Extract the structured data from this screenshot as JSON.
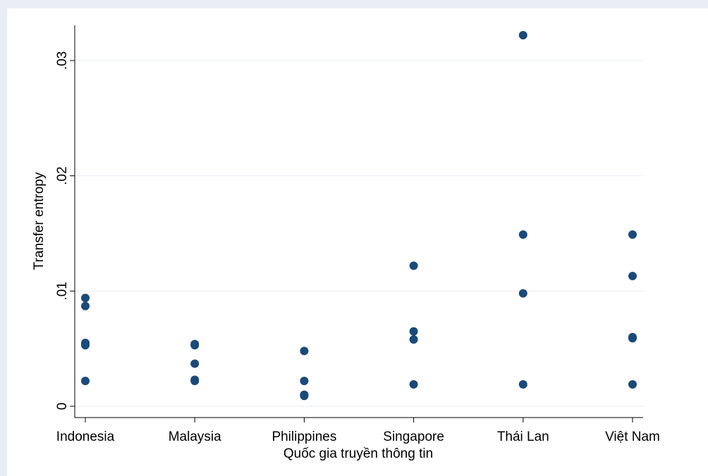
{
  "chart_data": {
    "type": "scatter",
    "xlabel": "Quốc gia truyền thông tin",
    "ylabel": "Transfer entropy",
    "categories": [
      "Indonesia",
      "Malaysia",
      "Philippines",
      "Singapore",
      "Thái Lan",
      "Việt Nam"
    ],
    "y_ticks": [
      {
        "value": 0,
        "label": "0"
      },
      {
        "value": 0.01,
        "label": ".01"
      },
      {
        "value": 0.02,
        "label": ".02"
      },
      {
        "value": 0.03,
        "label": ".03"
      }
    ],
    "ylim": [
      -0.001,
      0.0329
    ],
    "grid": true,
    "legend": "none",
    "marker_color": "#1a4a7a",
    "points": [
      {
        "category": "Indonesia",
        "y": 0.0094
      },
      {
        "category": "Indonesia",
        "y": 0.0087
      },
      {
        "category": "Indonesia",
        "y": 0.0055
      },
      {
        "category": "Indonesia",
        "y": 0.0053
      },
      {
        "category": "Indonesia",
        "y": 0.0022
      },
      {
        "category": "Malaysia",
        "y": 0.0054
      },
      {
        "category": "Malaysia",
        "y": 0.0053
      },
      {
        "category": "Malaysia",
        "y": 0.0037
      },
      {
        "category": "Malaysia",
        "y": 0.0023
      },
      {
        "category": "Malaysia",
        "y": 0.0022
      },
      {
        "category": "Philippines",
        "y": 0.0048
      },
      {
        "category": "Philippines",
        "y": 0.0022
      },
      {
        "category": "Philippines",
        "y": 0.001
      },
      {
        "category": "Philippines",
        "y": 0.0009
      },
      {
        "category": "Singapore",
        "y": 0.0122
      },
      {
        "category": "Singapore",
        "y": 0.0065
      },
      {
        "category": "Singapore",
        "y": 0.0058
      },
      {
        "category": "Singapore",
        "y": 0.0019
      },
      {
        "category": "Thái Lan",
        "y": 0.0322
      },
      {
        "category": "Thái Lan",
        "y": 0.0149
      },
      {
        "category": "Thái Lan",
        "y": 0.0098
      },
      {
        "category": "Thái Lan",
        "y": 0.0019
      },
      {
        "category": "Việt Nam",
        "y": 0.0149
      },
      {
        "category": "Việt Nam",
        "y": 0.0113
      },
      {
        "category": "Việt Nam",
        "y": 0.006
      },
      {
        "category": "Việt Nam",
        "y": 0.0059
      },
      {
        "category": "Việt Nam",
        "y": 0.0019
      }
    ]
  }
}
